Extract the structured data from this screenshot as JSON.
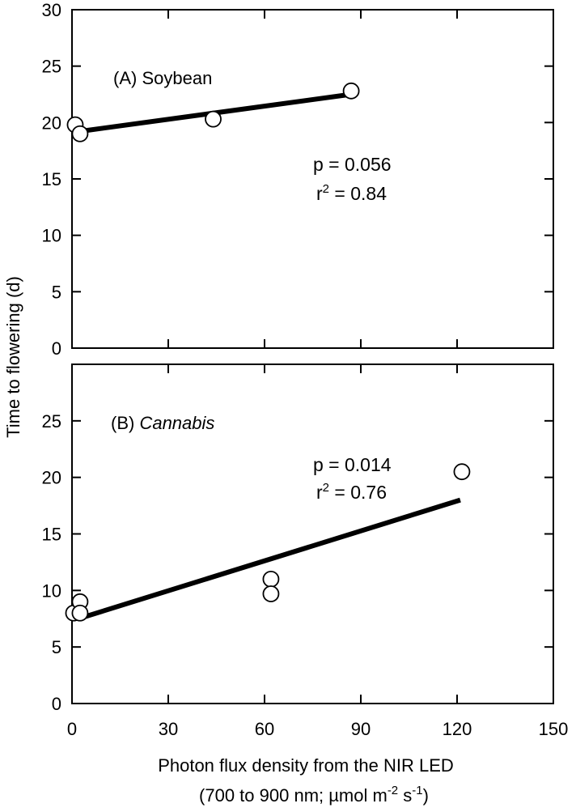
{
  "y_axis_title": "Time to flowering (d)",
  "x_axis_title_line1": "Photon flux density from the NIR LED",
  "x_axis_title_line2_prefix": "(700 to 900 nm; µmol m",
  "x_axis_title_exp1": "-2",
  "x_axis_title_mid": " s",
  "x_axis_title_exp2": "-1",
  "x_axis_title_suffix": ")",
  "chart_data": [
    {
      "type": "scatter",
      "title_prefix": "(A) ",
      "title_name": "Soybean",
      "title_italic": false,
      "xlim": [
        0,
        150
      ],
      "ylim": [
        0,
        30
      ],
      "x_ticks": [
        0,
        30,
        60,
        90,
        120,
        150
      ],
      "y_ticks": [
        0,
        5,
        10,
        15,
        20,
        25,
        30
      ],
      "points": [
        {
          "x": 1,
          "y": 19.8
        },
        {
          "x": 2.5,
          "y": 19.0
        },
        {
          "x": 44,
          "y": 20.3
        },
        {
          "x": 87,
          "y": 22.8
        }
      ],
      "fit_line": {
        "x": [
          2,
          87
        ],
        "y": [
          19.2,
          22.5
        ]
      },
      "p_text": "p = 0.056",
      "r2_base": "r",
      "r2_exp": "2",
      "r2_rest": " = 0.84"
    },
    {
      "type": "scatter",
      "title_prefix": "(B) ",
      "title_name": "Cannabis",
      "title_italic": true,
      "xlim": [
        0,
        150
      ],
      "ylim": [
        0,
        30
      ],
      "x_ticks": [
        0,
        30,
        60,
        90,
        120,
        150
      ],
      "y_ticks": [
        0,
        5,
        10,
        15,
        20,
        25
      ],
      "x_tick_labels": [
        "0",
        "30",
        "60",
        "90",
        "120",
        "150"
      ],
      "points": [
        {
          "x": 0.5,
          "y": 8.0
        },
        {
          "x": 2.5,
          "y": 9.0
        },
        {
          "x": 2.5,
          "y": 8.0
        },
        {
          "x": 62,
          "y": 11.0
        },
        {
          "x": 62,
          "y": 9.7
        },
        {
          "x": 121.5,
          "y": 20.5
        }
      ],
      "fit_line": {
        "x": [
          2,
          121
        ],
        "y": [
          7.5,
          18.0
        ]
      },
      "p_text": "p = 0.014",
      "r2_base": "r",
      "r2_exp": "2",
      "r2_rest": " = 0.76"
    }
  ]
}
